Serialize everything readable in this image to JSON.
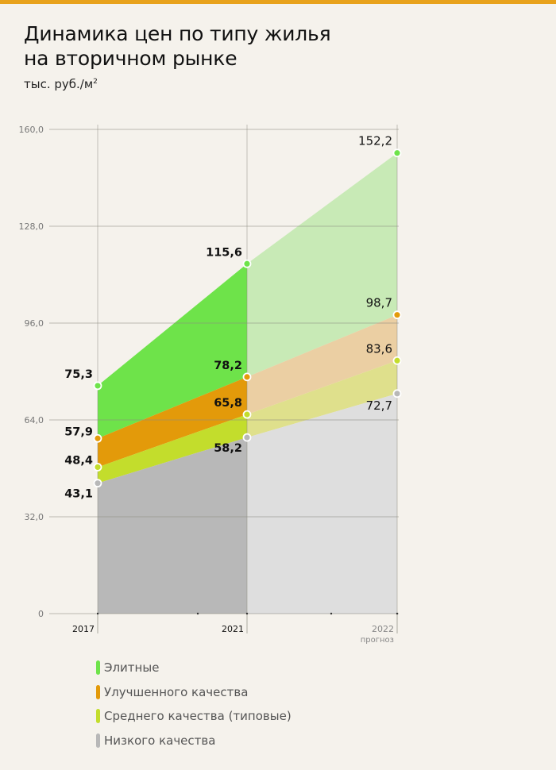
{
  "header": {
    "title_line1": "Динамика цен по типу жилья",
    "title_line2": "на вторичном рынке",
    "units_text": "тыс. руб./м",
    "units_sup": "2",
    "accent_color": "#e8a21c"
  },
  "chart_data": {
    "type": "area",
    "title": "Динамика цен по типу жилья на вторичном рынке",
    "subtitle": "тыс. руб./м²",
    "xlabel": "",
    "ylabel": "тыс. руб./м²",
    "categories": [
      "2017",
      "2021",
      "2022"
    ],
    "x_notes": {
      "2022": "прогноз"
    },
    "ylim": [
      0,
      160
    ],
    "yticks": [
      "0",
      "32,0",
      "64,0",
      "96,0",
      "128,0",
      "160,0"
    ],
    "grid": true,
    "legend_position": "bottom",
    "series": [
      {
        "name": "Элитные",
        "values": [
          75.3,
          115.6,
          152.2
        ],
        "labels": [
          "75,3",
          "115,6",
          "152,2"
        ],
        "color": "#6ee34a",
        "forecast_color": "#c8eab6"
      },
      {
        "name": "Улучшенного качества",
        "values": [
          57.9,
          78.2,
          98.7
        ],
        "labels": [
          "57,9",
          "78,2",
          "98,7"
        ],
        "color": "#e39a0a",
        "forecast_color": "#ebcfa3"
      },
      {
        "name": "Среднего качества (типовые)",
        "values": [
          48.4,
          65.8,
          83.6
        ],
        "labels": [
          "48,4",
          "65,8",
          "83,6"
        ],
        "color": "#c3dd2c",
        "forecast_color": "#dfe08c"
      },
      {
        "name": "Низкого качества",
        "values": [
          43.1,
          58.2,
          72.7
        ],
        "labels": [
          "43,1",
          "58,2",
          "72,7"
        ],
        "color": "#b8b8b8",
        "forecast_color": "#dedede"
      }
    ]
  },
  "legend": {
    "items": [
      {
        "label": "Элитные",
        "color": "#6ee34a"
      },
      {
        "label": "Улучшенного качества",
        "color": "#e39a0a"
      },
      {
        "label": "Среднего качества (типовые)",
        "color": "#c3dd2c"
      },
      {
        "label": "Низкого качества",
        "color": "#b8b8b8"
      }
    ]
  }
}
